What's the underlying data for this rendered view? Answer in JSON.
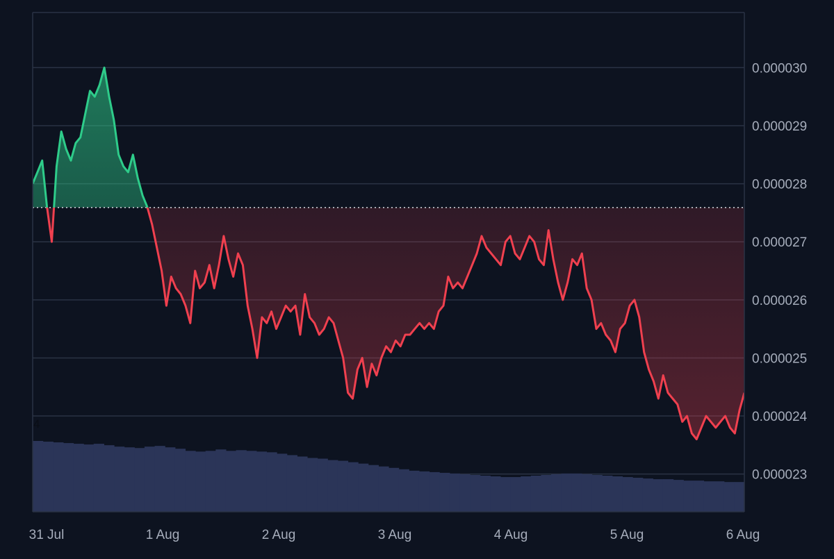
{
  "chart_data": {
    "type": "line",
    "baseline_value": 2.759e-05,
    "x_ticks": [
      "31 Jul",
      "1 Aug",
      "2 Aug",
      "3 Aug",
      "4 Aug",
      "5 Aug",
      "6 Aug"
    ],
    "y_ticks": [
      "0.000030",
      "0.000029",
      "0.000028",
      "0.000027",
      "0.000026",
      "0.000025",
      "0.000024",
      "0.000023"
    ],
    "ylim": [
      2.235e-05,
      3.095e-05
    ],
    "volume_label": "4",
    "colors": {
      "background": "#0d1320",
      "grid": "#2a3344",
      "axis_text": "#a6adbb",
      "up_line": "#2ecc8a",
      "down_line": "#f0404f",
      "volume": "#2b3558",
      "baseline": "#d7dbe2"
    },
    "series": [
      {
        "values": [
          2.8e-05,
          2.82e-05,
          2.84e-05,
          2.76e-05,
          2.7e-05,
          2.83e-05,
          2.89e-05,
          2.86e-05,
          2.84e-05,
          2.87e-05,
          2.88e-05,
          2.92e-05,
          2.96e-05,
          2.95e-05,
          2.97e-05,
          3e-05,
          2.95e-05,
          2.91e-05,
          2.85e-05,
          2.83e-05,
          2.82e-05,
          2.85e-05,
          2.81e-05,
          2.78e-05,
          2.76e-05,
          2.73e-05,
          2.69e-05,
          2.65e-05,
          2.59e-05,
          2.64e-05,
          2.62e-05,
          2.61e-05,
          2.59e-05,
          2.56e-05,
          2.65e-05,
          2.62e-05,
          2.63e-05,
          2.66e-05,
          2.62e-05,
          2.66e-05,
          2.71e-05,
          2.67e-05,
          2.64e-05,
          2.68e-05,
          2.66e-05,
          2.59e-05,
          2.55e-05,
          2.5e-05,
          2.57e-05,
          2.56e-05,
          2.58e-05,
          2.55e-05,
          2.57e-05,
          2.59e-05,
          2.58e-05,
          2.59e-05,
          2.54e-05,
          2.61e-05,
          2.57e-05,
          2.56e-05,
          2.54e-05,
          2.55e-05,
          2.57e-05,
          2.56e-05,
          2.53e-05,
          2.5e-05,
          2.44e-05,
          2.43e-05,
          2.48e-05,
          2.5e-05,
          2.45e-05,
          2.49e-05,
          2.47e-05,
          2.5e-05,
          2.52e-05,
          2.51e-05,
          2.53e-05,
          2.52e-05,
          2.54e-05,
          2.54e-05,
          2.55e-05,
          2.56e-05,
          2.55e-05,
          2.56e-05,
          2.55e-05,
          2.58e-05,
          2.59e-05,
          2.64e-05,
          2.62e-05,
          2.63e-05,
          2.62e-05,
          2.64e-05,
          2.66e-05,
          2.68e-05,
          2.71e-05,
          2.69e-05,
          2.68e-05,
          2.67e-05,
          2.66e-05,
          2.7e-05,
          2.71e-05,
          2.68e-05,
          2.67e-05,
          2.69e-05,
          2.71e-05,
          2.7e-05,
          2.67e-05,
          2.66e-05,
          2.72e-05,
          2.67e-05,
          2.63e-05,
          2.6e-05,
          2.63e-05,
          2.67e-05,
          2.66e-05,
          2.68e-05,
          2.62e-05,
          2.6e-05,
          2.55e-05,
          2.56e-05,
          2.54e-05,
          2.53e-05,
          2.51e-05,
          2.55e-05,
          2.56e-05,
          2.59e-05,
          2.6e-05,
          2.57e-05,
          2.51e-05,
          2.48e-05,
          2.46e-05,
          2.43e-05,
          2.47e-05,
          2.44e-05,
          2.43e-05,
          2.42e-05,
          2.39e-05,
          2.4e-05,
          2.37e-05,
          2.36e-05,
          2.38e-05,
          2.4e-05,
          2.39e-05,
          2.38e-05,
          2.39e-05,
          2.4e-05,
          2.38e-05,
          2.37e-05,
          2.41e-05,
          2.44e-05
        ]
      }
    ],
    "volume_values": [
      1.0,
      0.99,
      0.98,
      0.97,
      0.96,
      0.95,
      0.96,
      0.94,
      0.92,
      0.91,
      0.9,
      0.92,
      0.93,
      0.91,
      0.89,
      0.86,
      0.85,
      0.86,
      0.88,
      0.86,
      0.87,
      0.86,
      0.85,
      0.84,
      0.82,
      0.8,
      0.78,
      0.76,
      0.75,
      0.73,
      0.72,
      0.7,
      0.68,
      0.66,
      0.64,
      0.62,
      0.6,
      0.58,
      0.57,
      0.56,
      0.55,
      0.54,
      0.53,
      0.52,
      0.51,
      0.5,
      0.49,
      0.49,
      0.5,
      0.51,
      0.52,
      0.53,
      0.54,
      0.54,
      0.53,
      0.52,
      0.51,
      0.5,
      0.49,
      0.48,
      0.47,
      0.46,
      0.46,
      0.45,
      0.44,
      0.44,
      0.43,
      0.43,
      0.42,
      0.42
    ]
  }
}
